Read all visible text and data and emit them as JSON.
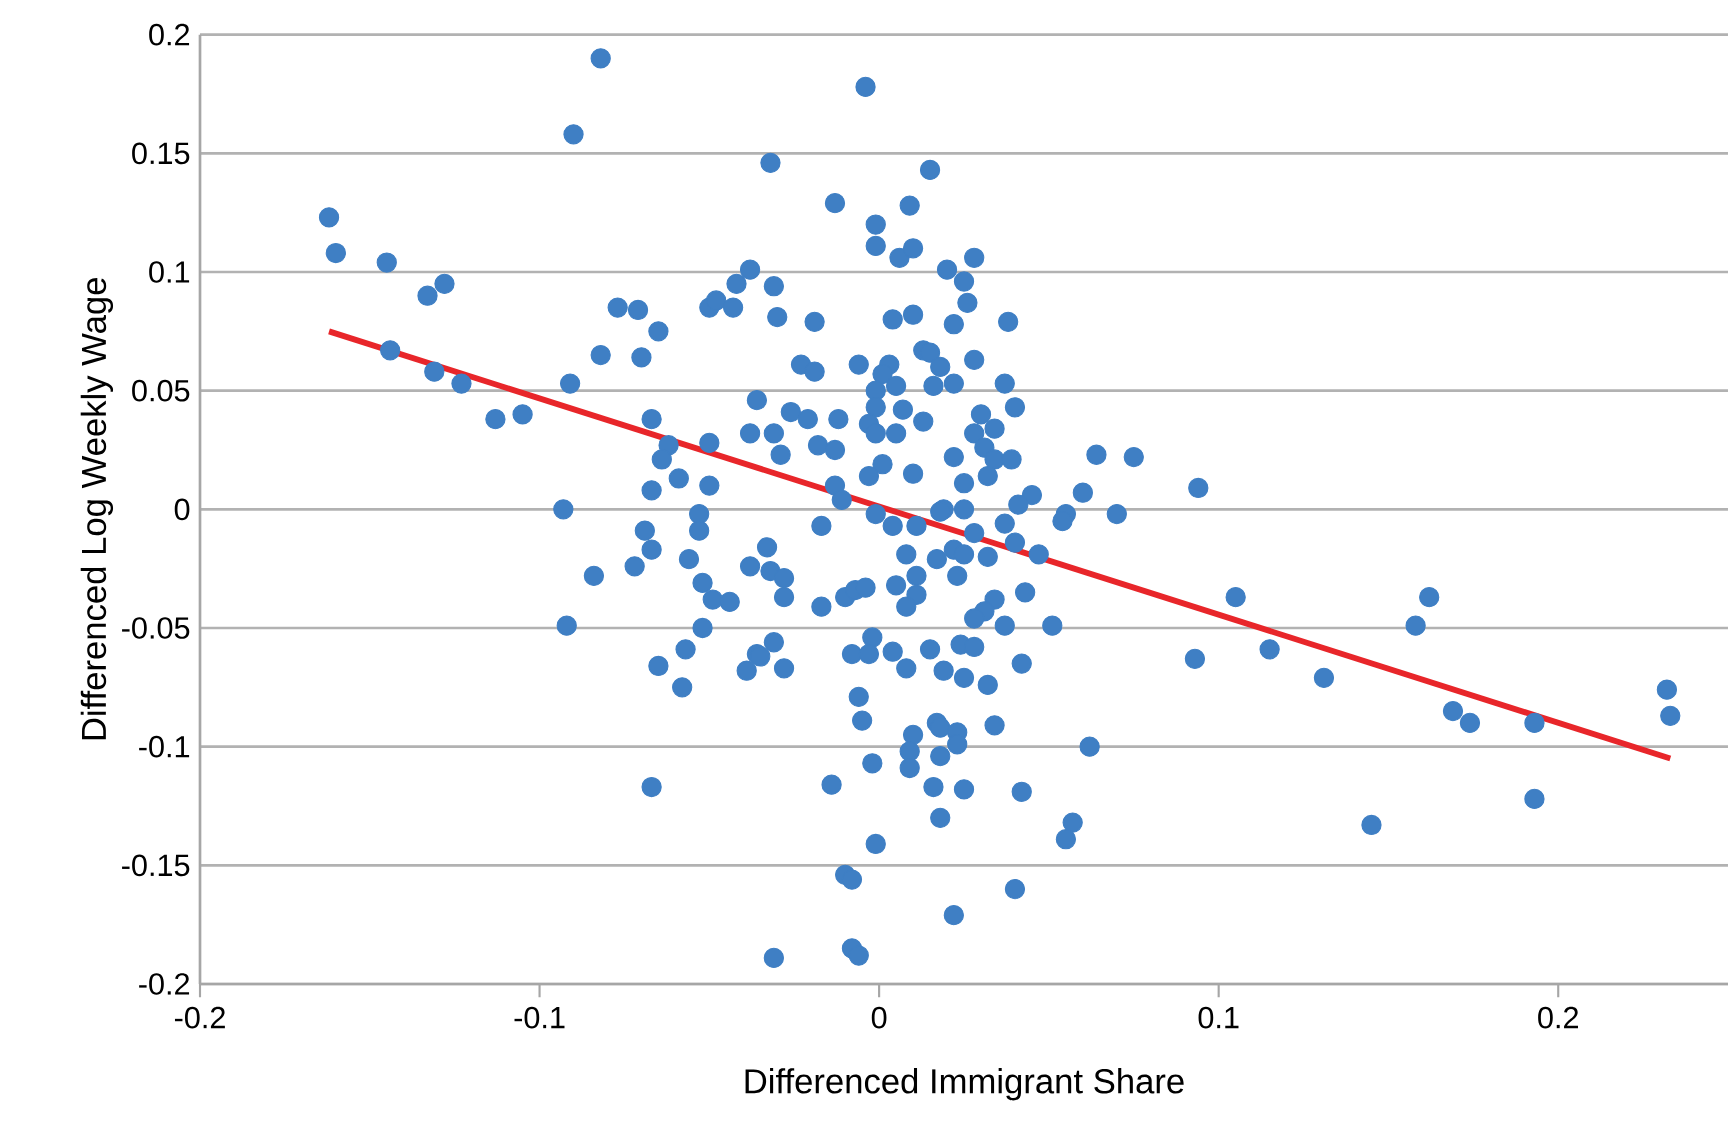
{
  "chart_data": {
    "type": "scatter",
    "xlabel": "Differenced Immigrant Share",
    "ylabel": "Differenced Log Weekly Wage",
    "xlim": [
      -0.2,
      0.25
    ],
    "ylim": [
      -0.2,
      0.2
    ],
    "xticks": [
      -0.2,
      -0.1,
      0,
      0.1,
      0.2
    ],
    "yticks": [
      -0.2,
      -0.15,
      -0.1,
      -0.05,
      0,
      0.05,
      0.1,
      0.15,
      0.2
    ],
    "grid": "y",
    "marker": "circle",
    "series": [
      {
        "color": "#3f7fc4",
        "x": [
          -0.162,
          -0.16,
          -0.145,
          -0.133,
          -0.128,
          -0.144,
          -0.131,
          -0.123,
          -0.113,
          -0.105,
          -0.09,
          -0.082,
          -0.077,
          -0.071,
          -0.065,
          -0.082,
          -0.07,
          -0.091,
          -0.067,
          -0.05,
          -0.048,
          -0.043,
          -0.042,
          -0.038,
          -0.036,
          -0.038,
          -0.05,
          -0.062,
          -0.064,
          -0.059,
          -0.067,
          -0.05,
          -0.053,
          -0.093,
          -0.004,
          -0.032,
          0.015,
          -0.013,
          0.009,
          -0.001,
          -0.001,
          0.006,
          0.01,
          0.028,
          0.02,
          0.025,
          0.026,
          -0.031,
          -0.03,
          -0.019,
          0.004,
          0.01,
          0.022,
          0.038,
          -0.023,
          -0.019,
          -0.006,
          0.003,
          0.013,
          0.015,
          0.018,
          0.028,
          0.001,
          0.005,
          -0.001,
          0.016,
          0.022,
          0.037,
          0.04,
          -0.026,
          -0.021,
          -0.012,
          -0.001,
          0.007,
          0.013,
          -0.003,
          0.005,
          -0.001,
          -0.031,
          -0.029,
          -0.018,
          -0.013,
          0.03,
          0.034,
          0.028,
          0.031,
          0.034,
          0.039,
          0.022,
          0.001,
          0.01,
          -0.003,
          0.025,
          0.032,
          0.045,
          0.06,
          0.064,
          0.075,
          -0.013,
          -0.011,
          0.019,
          0.041,
          0.055,
          0.07,
          -0.092,
          -0.084,
          -0.069,
          -0.067,
          -0.072,
          -0.053,
          -0.056,
          -0.052,
          -0.049,
          -0.044,
          -0.052,
          -0.057,
          -0.065,
          -0.058,
          -0.067,
          -0.038,
          -0.036,
          -0.039,
          -0.017,
          -0.033,
          -0.032,
          -0.028,
          -0.028,
          -0.017,
          -0.01,
          -0.007,
          -0.004,
          0.004,
          -0.001,
          0.011,
          0.008,
          0.005,
          0.011,
          0.011,
          0.008,
          0.017,
          0.022,
          0.025,
          0.023,
          0.018,
          0.025,
          0.028,
          0.032,
          0.037,
          0.04,
          0.047,
          0.054,
          0.043,
          0.034,
          0.031,
          0.028,
          0.037,
          0.051,
          -0.031,
          -0.035,
          -0.028,
          -0.002,
          -0.008,
          -0.003,
          0.004,
          0.008,
          0.015,
          0.019,
          0.024,
          0.028,
          0.025,
          0.032,
          0.042,
          -0.006,
          -0.005,
          0.017,
          0.018,
          0.023,
          0.023,
          0.01,
          0.009,
          0.009,
          0.018,
          0.034,
          0.062,
          -0.002,
          -0.014,
          0.016,
          0.025,
          0.042,
          0.018,
          -0.001,
          0.057,
          0.055,
          -0.01,
          -0.008,
          0.04,
          0.022,
          -0.008,
          -0.006,
          -0.031,
          0.094,
          0.105,
          0.093,
          0.115,
          0.131,
          0.145,
          0.162,
          0.158,
          0.169,
          0.174,
          0.193,
          0.193,
          0.232,
          0.233
        ],
        "values": [
          0.123,
          0.108,
          0.104,
          0.09,
          0.095,
          0.067,
          0.058,
          0.053,
          0.038,
          0.04,
          0.158,
          0.19,
          0.085,
          0.084,
          0.075,
          0.065,
          0.064,
          0.053,
          0.038,
          0.085,
          0.088,
          0.085,
          0.095,
          0.101,
          0.046,
          0.032,
          0.028,
          0.027,
          0.021,
          0.013,
          0.008,
          0.01,
          -0.002,
          0.0,
          0.178,
          0.146,
          0.143,
          0.129,
          0.128,
          0.12,
          0.111,
          0.106,
          0.11,
          0.106,
          0.101,
          0.096,
          0.087,
          0.094,
          0.081,
          0.079,
          0.08,
          0.082,
          0.078,
          0.079,
          0.061,
          0.058,
          0.061,
          0.061,
          0.067,
          0.066,
          0.06,
          0.063,
          0.057,
          0.052,
          0.05,
          0.052,
          0.053,
          0.053,
          0.043,
          0.041,
          0.038,
          0.038,
          0.043,
          0.042,
          0.037,
          0.036,
          0.032,
          0.032,
          0.032,
          0.023,
          0.027,
          0.025,
          0.04,
          0.034,
          0.032,
          0.026,
          0.021,
          0.021,
          0.022,
          0.019,
          0.015,
          0.014,
          0.011,
          0.014,
          0.006,
          0.007,
          0.023,
          0.022,
          0.01,
          0.004,
          0.0,
          0.002,
          -0.002,
          -0.002,
          -0.049,
          -0.028,
          -0.009,
          -0.017,
          -0.024,
          -0.009,
          -0.021,
          -0.031,
          -0.038,
          -0.039,
          -0.05,
          -0.059,
          -0.066,
          -0.075,
          -0.117,
          -0.024,
          -0.061,
          -0.068,
          -0.007,
          -0.016,
          -0.026,
          -0.029,
          -0.037,
          -0.041,
          -0.037,
          -0.034,
          -0.033,
          -0.007,
          -0.002,
          -0.007,
          -0.019,
          -0.032,
          -0.028,
          -0.036,
          -0.041,
          -0.021,
          -0.017,
          -0.019,
          -0.028,
          -0.001,
          0.0,
          -0.01,
          -0.02,
          -0.006,
          -0.014,
          -0.019,
          -0.005,
          -0.035,
          -0.038,
          -0.043,
          -0.046,
          -0.049,
          -0.049,
          -0.056,
          -0.062,
          -0.067,
          -0.054,
          -0.061,
          -0.061,
          -0.06,
          -0.067,
          -0.059,
          -0.068,
          -0.057,
          -0.058,
          -0.071,
          -0.074,
          -0.065,
          -0.079,
          -0.089,
          -0.09,
          -0.092,
          -0.094,
          -0.099,
          -0.095,
          -0.102,
          -0.109,
          -0.104,
          -0.091,
          -0.1,
          -0.107,
          -0.116,
          -0.117,
          -0.118,
          -0.119,
          -0.13,
          -0.141,
          -0.132,
          -0.139,
          -0.154,
          -0.156,
          -0.16,
          -0.171,
          -0.185,
          -0.188,
          -0.189,
          0.009,
          -0.037,
          -0.063,
          -0.059,
          -0.071,
          -0.133,
          -0.037,
          -0.049,
          -0.085,
          -0.09,
          -0.09,
          -0.122,
          -0.076,
          -0.087
        ]
      },
      {
        "type": "line",
        "color": "#e8262a",
        "marker": "none",
        "x": [
          -0.162,
          0.233
        ],
        "values": [
          0.075,
          -0.105
        ]
      }
    ]
  }
}
